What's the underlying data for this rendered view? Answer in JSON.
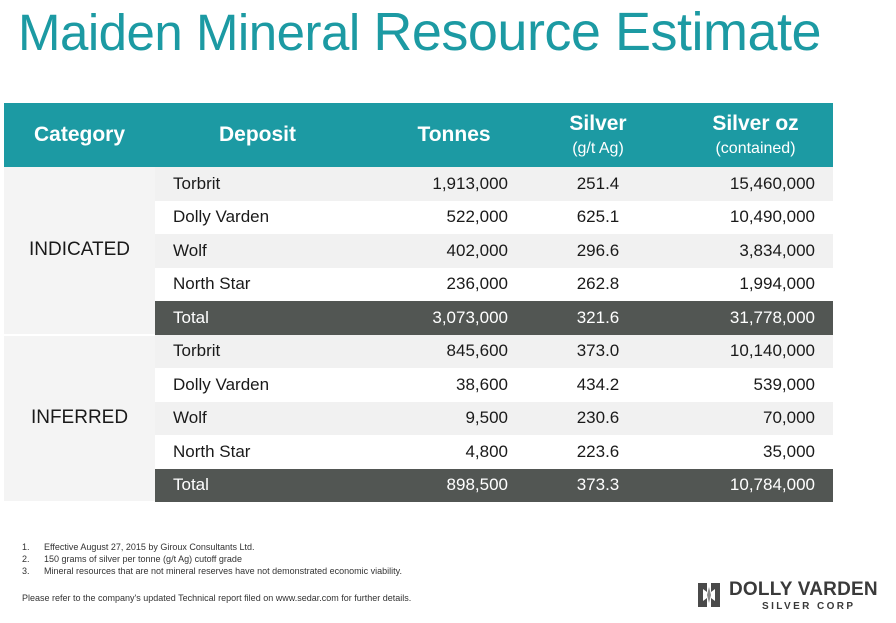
{
  "title": {
    "part1": "Maiden Mineral",
    "part2": "Resource Estimate"
  },
  "table": {
    "headers": {
      "category": "Category",
      "deposit": "Deposit",
      "tonnes": "Tonnes",
      "silver": "Silver",
      "silver_unit": "(g/t Ag)",
      "silver_oz": "Silver oz",
      "silver_oz_unit": "(contained)"
    },
    "indicated": {
      "label": "INDICATED",
      "rows": [
        {
          "deposit": "Torbrit",
          "tonnes": "1,913,000",
          "grade": "251.4",
          "oz": "15,460,000"
        },
        {
          "deposit": "Dolly Varden",
          "tonnes": "522,000",
          "grade": "625.1",
          "oz": "10,490,000"
        },
        {
          "deposit": "Wolf",
          "tonnes": "402,000",
          "grade": "296.6",
          "oz": "3,834,000"
        },
        {
          "deposit": "North Star",
          "tonnes": "236,000",
          "grade": "262.8",
          "oz": "1,994,000"
        }
      ],
      "total": {
        "deposit": "Total",
        "tonnes": "3,073,000",
        "grade": "321.6",
        "oz": "31,778,000"
      }
    },
    "inferred": {
      "label": "INFERRED",
      "rows": [
        {
          "deposit": "Torbrit",
          "tonnes": "845,600",
          "grade": "373.0",
          "oz": "10,140,000"
        },
        {
          "deposit": "Dolly Varden",
          "tonnes": "38,600",
          "grade": "434.2",
          "oz": "539,000"
        },
        {
          "deposit": "Wolf",
          "tonnes": "9,500",
          "grade": "230.6",
          "oz": "70,000"
        },
        {
          "deposit": "North Star",
          "tonnes": "4,800",
          "grade": "223.6",
          "oz": "35,000"
        }
      ],
      "total": {
        "deposit": "Total",
        "tonnes": "898,500",
        "grade": "373.3",
        "oz": "10,784,000"
      }
    }
  },
  "notes": [
    {
      "num": "1.",
      "text": "Effective August 27, 2015 by Giroux Consultants Ltd."
    },
    {
      "num": "2.",
      "text": "150 grams of silver per tonne (g/t Ag) cutoff grade"
    },
    {
      "num": "3.",
      "text": "Mineral resources that are not mineral reserves have not demonstrated economic viability."
    }
  ],
  "refer": "Please refer to the company's updated Technical report filed on www.sedar.com for further details.",
  "logo": {
    "line1": "DOLLY VARDEN",
    "line2": "SILVER CORP",
    "icon": "dolly-varden-logo-icon",
    "color": "#3a3a3a"
  },
  "colors": {
    "accent": "#1c9aa3",
    "total_row": "#525653",
    "alt_row": "#f1f1f1"
  }
}
